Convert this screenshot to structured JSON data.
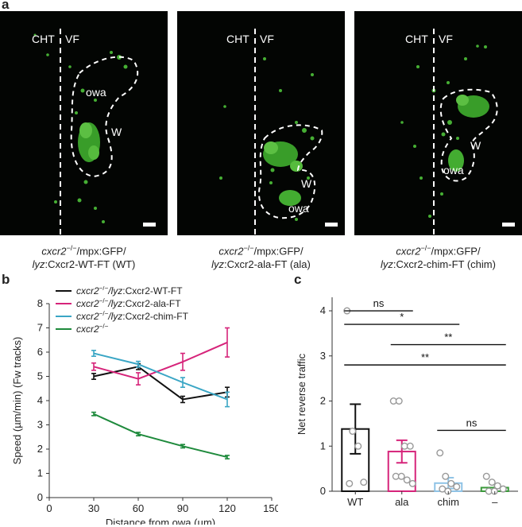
{
  "panel_labels": {
    "a": "a",
    "b": "b",
    "c": "c"
  },
  "panel_a": {
    "images": [
      {
        "cht": "CHT",
        "vf": "VF",
        "owa": "owa",
        "w": "W",
        "caption_line1_italic": "cxcr2",
        "caption_line1_sup": "−/−",
        "caption_line1_rest": "/mpx:GFP/",
        "caption_line2_italic": "lyz",
        "caption_line2_rest": ":Cxcr2-WT-FT (WT)"
      },
      {
        "cht": "CHT",
        "vf": "VF",
        "owa": "owa",
        "w": "W",
        "caption_line1_italic": "cxcr2",
        "caption_line1_sup": "−/−",
        "caption_line1_rest": "/mpx:GFP/",
        "caption_line2_italic": "lyz",
        "caption_line2_rest": ":Cxcr2-ala-FT (ala)"
      },
      {
        "cht": "CHT",
        "vf": "VF",
        "owa": "owa",
        "w": "W",
        "caption_line1_italic": "cxcr2",
        "caption_line1_sup": "−/−",
        "caption_line1_rest": "/mpx:GFP/",
        "caption_line2_italic": "lyz",
        "caption_line2_rest": ":Cxcr2-chim-FT (chim)"
      }
    ]
  },
  "chart_data": [
    {
      "type": "line",
      "panel": "b",
      "xlabel": "Distance from owa (µm)",
      "ylabel": "Speed (µm/min) (Fw tracks)",
      "xlim": [
        0,
        150
      ],
      "ylim": [
        0,
        8
      ],
      "xticks": [
        0,
        30,
        60,
        90,
        120,
        150
      ],
      "yticks": [
        0,
        1,
        2,
        3,
        4,
        5,
        6,
        7,
        8
      ],
      "legend_position": "top-left",
      "x": [
        30,
        60,
        90,
        120
      ],
      "series": [
        {
          "name": "cxcr2−/−/lyz:Cxcr2-WT-FT",
          "legend_italic": "cxcr2",
          "legend_sup": "−/−",
          "legend_mid_italic": "/lyz",
          "legend_rest": ":Cxcr2-WT-FT",
          "color": "#111111",
          "values": [
            5.0,
            5.4,
            4.05,
            4.35
          ],
          "errors": [
            0.12,
            0.12,
            0.13,
            0.2
          ]
        },
        {
          "name": "cxcr2−/−/lyz:Cxcr2-ala-FT",
          "legend_italic": "cxcr2",
          "legend_sup": "−/−",
          "legend_mid_italic": "/lyz",
          "legend_rest": ":Cxcr2-ala-FT",
          "color": "#d6247a",
          "values": [
            5.4,
            4.9,
            5.6,
            6.4
          ],
          "errors": [
            0.15,
            0.25,
            0.35,
            0.6
          ]
        },
        {
          "name": "cxcr2−/−/lyz:Cxcr2-chim-FT",
          "legend_italic": "cxcr2",
          "legend_sup": "−/−",
          "legend_mid_italic": "/lyz",
          "legend_rest": ":Cxcr2-chim-FT",
          "color": "#3aa6c5",
          "values": [
            5.95,
            5.5,
            4.75,
            4.05
          ],
          "errors": [
            0.12,
            0.12,
            0.2,
            0.3
          ]
        },
        {
          "name": "cxcr2−/−",
          "legend_italic": "cxcr2",
          "legend_sup": "−/−",
          "legend_mid_italic": "",
          "legend_rest": "",
          "color": "#1e8a3c",
          "values": [
            3.45,
            2.62,
            2.12,
            1.67
          ],
          "errors": [
            0.07,
            0.07,
            0.07,
            0.07
          ]
        }
      ]
    },
    {
      "type": "bar",
      "panel": "c",
      "ylabel": "Net reverse traffic",
      "ylim": [
        0,
        4.3
      ],
      "yticks": [
        0,
        1,
        2,
        3,
        4
      ],
      "categories": [
        "WT",
        "ala",
        "chim",
        "–"
      ],
      "values": [
        1.38,
        0.88,
        0.18,
        0.08
      ],
      "errors": [
        0.55,
        0.25,
        0.12,
        0.08
      ],
      "colors": [
        "#111111",
        "#d6247a",
        "#8fc3e6",
        "#3a9a3a"
      ],
      "points": [
        [
          4.0,
          1.33,
          1.0,
          0.2,
          0.17
        ],
        [
          2.0,
          2.0,
          1.0,
          1.0,
          0.33,
          0.33,
          0.25,
          0.17
        ],
        [
          0.85,
          0.33,
          0.17,
          0.1,
          0.05,
          0.0
        ],
        [
          0.33,
          0.2,
          0.12,
          0.05,
          0.0,
          0.0
        ]
      ],
      "significance": [
        {
          "from": 0,
          "to": 1,
          "y": 4.0,
          "label": "ns"
        },
        {
          "from": 0,
          "to": 2,
          "y": 3.7,
          "label": "*"
        },
        {
          "from": 1,
          "to": 3,
          "y": 3.25,
          "label": "**"
        },
        {
          "from": 0,
          "to": 3,
          "y": 2.8,
          "label": "**"
        },
        {
          "from": 2,
          "to": 3,
          "y": 1.35,
          "label": "ns"
        }
      ]
    }
  ]
}
